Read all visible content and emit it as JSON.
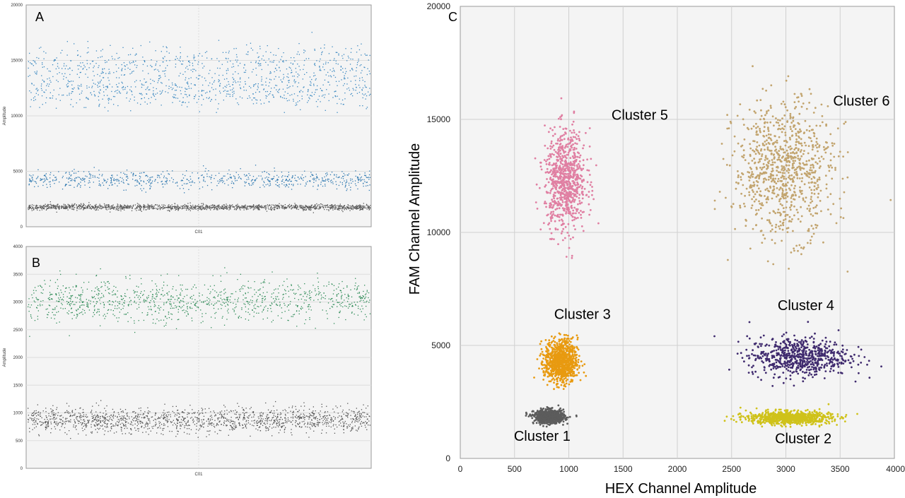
{
  "panels": {
    "A": {
      "letter": "A"
    },
    "B": {
      "letter": "B"
    },
    "C": {
      "letter": "C"
    }
  },
  "chart_data": [
    {
      "id": "A",
      "type": "scatter",
      "title": "",
      "xlabel": "C01",
      "ylabel": "Amplitude",
      "ylim": [
        0,
        20000
      ],
      "yticks": [
        "0",
        "5000",
        "10000",
        "15000",
        "20000"
      ],
      "grid": true,
      "bands": [
        {
          "name": "",
          "center": 1800,
          "spread": 130,
          "count": 1500,
          "color": "#5a5a5a"
        },
        {
          "name": "",
          "center": 4300,
          "spread": 380,
          "count": 700,
          "color": "#2e78b0"
        },
        {
          "name": "",
          "center": 12200,
          "spread": 700,
          "count": 600,
          "color": "#3a88c0"
        },
        {
          "name": "",
          "center": 14600,
          "spread": 900,
          "count": 600,
          "color": "#3a88c0"
        }
      ]
    },
    {
      "id": "B",
      "type": "scatter",
      "title": "",
      "xlabel": "C01",
      "ylabel": "Amplitude",
      "ylim": [
        0,
        4000
      ],
      "yticks": [
        "0",
        "500",
        "1000",
        "1500",
        "2000",
        "2500",
        "3000",
        "3500",
        "4000"
      ],
      "grid": true,
      "bands": [
        {
          "name": "",
          "center": 880,
          "spread": 110,
          "count": 1500,
          "color": "#555555"
        },
        {
          "name": "",
          "center": 3030,
          "spread": 190,
          "count": 1100,
          "color": "#2e8b57"
        }
      ]
    },
    {
      "id": "C",
      "type": "scatter",
      "title": "",
      "xlabel": "HEX Channel Amplitude",
      "ylabel": "FAM Channel Amplitude",
      "xlim": [
        0,
        4000
      ],
      "ylim": [
        0,
        20000
      ],
      "xticks": [
        "0",
        "500",
        "1000",
        "1500",
        "2000",
        "2500",
        "3000",
        "3500",
        "4000"
      ],
      "yticks": [
        "0",
        "5000",
        "10000",
        "15000",
        "20000"
      ],
      "grid": true,
      "clusters": [
        {
          "name": "Cluster 1",
          "x": 820,
          "y": 1850,
          "sx": 70,
          "sy": 150,
          "count": 700,
          "color": "#5c5c5c"
        },
        {
          "name": "Cluster 2",
          "x": 3030,
          "y": 1800,
          "sx": 190,
          "sy": 140,
          "count": 900,
          "color": "#cfc21a"
        },
        {
          "name": "Cluster 3",
          "x": 930,
          "y": 4300,
          "sx": 75,
          "sy": 480,
          "count": 900,
          "color": "#e89a10"
        },
        {
          "name": "Cluster 4",
          "x": 3120,
          "y": 4500,
          "sx": 230,
          "sy": 430,
          "count": 650,
          "color": "#3f2a6e"
        },
        {
          "name": "Cluster 5",
          "x": 970,
          "y": 12300,
          "sx": 95,
          "sy": 1100,
          "count": 800,
          "color": "#e07fa2"
        },
        {
          "name": "Cluster 6",
          "x": 2980,
          "y": 12800,
          "sx": 230,
          "sy": 1500,
          "count": 900,
          "color": "#c2a46e"
        }
      ]
    }
  ]
}
